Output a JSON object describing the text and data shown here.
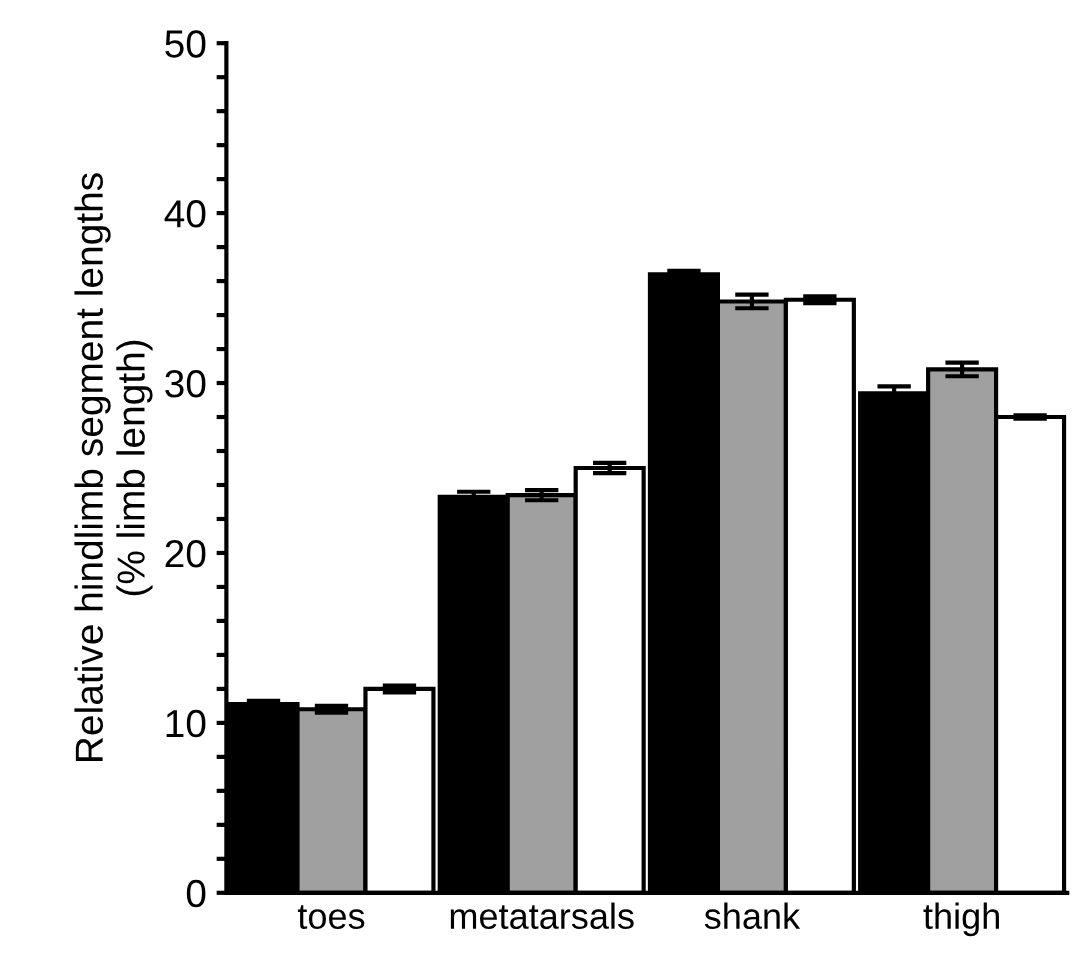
{
  "chart_data": {
    "type": "bar",
    "ylabel": "Relative hindlimb segment lengths\n(% limb length)",
    "categories": [
      "toes",
      "metatarsals",
      "shank",
      "thigh"
    ],
    "series": [
      {
        "color": "#000000",
        "values": [
          11.1,
          23.3,
          36.4,
          29.4
        ],
        "errors": [
          0.2,
          0.3,
          0.2,
          0.4
        ]
      },
      {
        "color": "#a0a0a0",
        "values": [
          10.8,
          23.4,
          34.8,
          30.8
        ],
        "errors": [
          0.2,
          0.3,
          0.4,
          0.4
        ]
      },
      {
        "color": "#ffffff",
        "values": [
          12.0,
          25.0,
          34.9,
          28.0
        ],
        "errors": [
          0.2,
          0.3,
          0.2,
          0.1
        ]
      }
    ],
    "ylim": [
      0,
      50
    ],
    "yticks": [
      0,
      {
        "value": 2,
        "label": null
      },
      {
        "value": 4,
        "label": null
      },
      {
        "value": 6,
        "label": null
      },
      {
        "value": 8,
        "label": null
      },
      10,
      {
        "value": 12,
        "label": null
      },
      {
        "value": 14,
        "label": null
      },
      {
        "value": 16,
        "label": null
      },
      {
        "value": 18,
        "label": null
      },
      20,
      {
        "value": 22,
        "label": null
      },
      {
        "value": 24,
        "label": null
      },
      {
        "value": 26,
        "label": null
      },
      {
        "value": 28,
        "label": null
      },
      30,
      {
        "value": 32,
        "label": null
      },
      {
        "value": 34,
        "label": null
      },
      {
        "value": 36,
        "label": null
      },
      {
        "value": 38,
        "label": null
      },
      40,
      {
        "value": 42,
        "label": null
      },
      {
        "value": 44,
        "label": null
      },
      {
        "value": 46,
        "label": null
      },
      {
        "value": 48,
        "label": null
      },
      50
    ],
    "grid": false,
    "legend": false
  }
}
